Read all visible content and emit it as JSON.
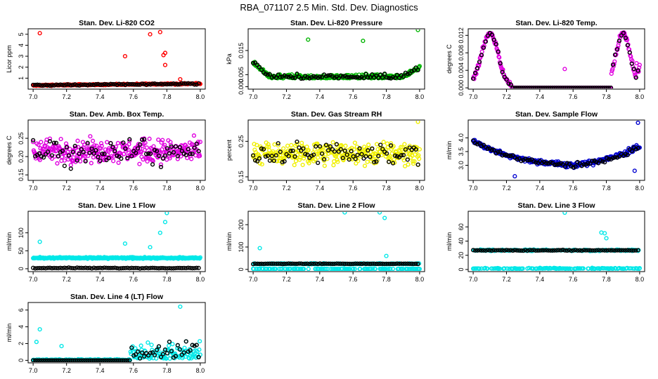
{
  "title": "RBA_071107  2.5 Min. Std. Dev. Diagnostics",
  "chart_data": [
    {
      "type": "scatter",
      "title": "Stan. Dev. Li-820 CO2",
      "ylabel": "Licor ppm",
      "xlim": [
        6.97,
        8.03
      ],
      "ylim": [
        0,
        5.5
      ],
      "xticks": [
        "7.0",
        "7.2",
        "7.4",
        "7.6",
        "7.8",
        "8.0"
      ],
      "yticks": [
        "1",
        "2",
        "3",
        "4",
        "5"
      ],
      "ytick_values": [
        1,
        2,
        3,
        4,
        5
      ],
      "colors": {
        "primary": "#ff0000",
        "secondary": "#000000"
      },
      "base": [
        0.35,
        0.5
      ],
      "spread": 0.08,
      "secondary_offset": 0,
      "outliers": [
        [
          7.04,
          5.1
        ],
        [
          7.55,
          3.0
        ],
        [
          7.7,
          5.0
        ],
        [
          7.76,
          5.2
        ],
        [
          7.78,
          3.1
        ],
        [
          7.79,
          3.3
        ],
        [
          7.79,
          2.2
        ],
        [
          7.88,
          0.9
        ]
      ]
    },
    {
      "type": "scatter",
      "title": "Stan. Dev. Li-820 Pressure",
      "ylabel": "kPa",
      "xlim": [
        6.97,
        8.03
      ],
      "ylim": [
        -0.001,
        0.024
      ],
      "xticks": [
        "7.0",
        "7.2",
        "7.4",
        "7.6",
        "7.8",
        "8.0"
      ],
      "yticks": [
        "0.000",
        "0.005",
        "0.015"
      ],
      "ytick_values": [
        0,
        0.005,
        0.015
      ],
      "colors": {
        "primary": "#00b400",
        "secondary": "#000000"
      },
      "curve": "bowl",
      "outliers": [
        [
          7.33,
          0.0195
        ],
        [
          7.66,
          0.019
        ],
        [
          7.99,
          0.0235
        ]
      ]
    },
    {
      "type": "scatter",
      "title": "Stan. Dev. Li-820 Temp.",
      "ylabel": "degrees C",
      "xlim": [
        6.97,
        8.03
      ],
      "ylim": [
        -0.0003,
        0.0135
      ],
      "xticks": [
        "7.0",
        "7.2",
        "7.4",
        "7.6",
        "7.8",
        "8.0"
      ],
      "yticks": [
        "0.000",
        "0.004",
        "0.008",
        "0.012"
      ],
      "ytick_values": [
        0,
        0.004,
        0.008,
        0.012
      ],
      "colors": {
        "primary": "#e000e0",
        "secondary": "#000000"
      },
      "curve": "twin_hump",
      "outliers": [
        [
          7.55,
          0.0043
        ]
      ]
    },
    {
      "type": "scatter",
      "title": "Stan. Dev. Amb. Box Temp.",
      "ylabel": "degrees C",
      "xlim": [
        6.97,
        8.03
      ],
      "ylim": [
        0.135,
        0.3
      ],
      "xticks": [
        "7.0",
        "7.2",
        "7.4",
        "7.6",
        "7.8",
        "8.0"
      ],
      "yticks": [
        "0.15",
        "0.20",
        "0.25"
      ],
      "ytick_values": [
        0.15,
        0.2,
        0.25
      ],
      "colors": {
        "primary": "#e000e0",
        "secondary": "#000000"
      },
      "base": [
        0.215,
        0.215
      ],
      "spread": 0.045,
      "outliers": []
    },
    {
      "type": "scatter",
      "title": "Stan. Dev. Gas Stream RH",
      "ylabel": "percent",
      "xlim": [
        6.97,
        8.03
      ],
      "ylim": [
        0.14,
        0.31
      ],
      "xticks": [
        "7.0",
        "7.2",
        "7.4",
        "7.6",
        "7.8",
        "8.0"
      ],
      "yticks": [
        "0.15",
        "0.25"
      ],
      "ytick_values": [
        0.15,
        0.25
      ],
      "colors": {
        "primary": "#f0f000",
        "secondary": "#000000"
      },
      "base": [
        0.215,
        0.215
      ],
      "spread": 0.045,
      "outliers": [
        [
          7.99,
          0.305
        ]
      ]
    },
    {
      "type": "scatter",
      "title": "Stan. Dev. Sample Flow",
      "ylabel": "ml/min",
      "xlim": [
        6.97,
        8.03
      ],
      "ylim": [
        2.45,
        4.65
      ],
      "xticks": [
        "7.0",
        "7.2",
        "7.4",
        "7.6",
        "7.8",
        "8.0"
      ],
      "yticks": [
        "3.0",
        "3.5",
        "4.0"
      ],
      "ytick_values": [
        3,
        3.5,
        4
      ],
      "colors": {
        "primary": "#0000d0",
        "secondary": "#000000"
      },
      "curve": "valley",
      "outliers": [
        [
          7.25,
          2.6
        ],
        [
          7.99,
          4.55
        ],
        [
          7.97,
          2.8
        ]
      ]
    },
    {
      "type": "scatter",
      "title": "Stan. Dev. Line 1 Flow",
      "ylabel": "ml/min",
      "xlim": [
        6.97,
        8.03
      ],
      "ylim": [
        -8,
        160
      ],
      "xticks": [
        "7.0",
        "7.2",
        "7.4",
        "7.6",
        "7.8",
        "8.0"
      ],
      "yticks": [
        "0",
        "50",
        "100"
      ],
      "ytick_values": [
        0,
        50,
        100
      ],
      "colors": {
        "primary": "#00e8e8",
        "secondary": "#000000"
      },
      "base": [
        30,
        30
      ],
      "spread": 3,
      "secondary_level": 2,
      "outliers": [
        [
          7.04,
          75
        ],
        [
          7.55,
          70
        ],
        [
          7.7,
          60
        ],
        [
          7.76,
          100
        ],
        [
          7.79,
          130
        ],
        [
          7.8,
          155
        ]
      ]
    },
    {
      "type": "scatter",
      "title": "Stan. Dev. Line 2 Flow",
      "ylabel": "ml/min",
      "xlim": [
        6.97,
        8.03
      ],
      "ylim": [
        -10,
        260
      ],
      "xticks": [
        "7.0",
        "7.2",
        "7.4",
        "7.6",
        "7.8",
        "8.0"
      ],
      "yticks": [
        "0",
        "100",
        "200"
      ],
      "ytick_values": [
        0,
        100,
        200
      ],
      "colors": {
        "primary": "#00e8e8",
        "secondary": "#000000"
      },
      "base": [
        25,
        25
      ],
      "spread": 3,
      "secondary_level": 25,
      "low_band": 2,
      "outliers": [
        [
          7.04,
          95
        ],
        [
          7.55,
          255
        ],
        [
          7.76,
          255
        ],
        [
          7.79,
          230
        ],
        [
          7.8,
          60
        ]
      ]
    },
    {
      "type": "scatter",
      "title": "Stan. Dev. Line 3 Flow",
      "ylabel": "ml/min",
      "xlim": [
        6.97,
        8.03
      ],
      "ylim": [
        -3,
        82
      ],
      "xticks": [
        "7.0",
        "7.2",
        "7.4",
        "7.6",
        "7.8",
        "8.0"
      ],
      "yticks": [
        "0",
        "20",
        "40",
        "60"
      ],
      "ytick_values": [
        0,
        20,
        40,
        60
      ],
      "colors": {
        "primary": "#00e8e8",
        "secondary": "#000000"
      },
      "base": [
        27,
        27
      ],
      "spread": 1.5,
      "secondary_level": 27,
      "low_band": 1,
      "outliers": [
        [
          7.55,
          80
        ],
        [
          7.77,
          52
        ],
        [
          7.79,
          51
        ],
        [
          7.8,
          44
        ]
      ]
    },
    {
      "type": "scatter",
      "title": "Stan. Dev. Line 4 (LT) Flow",
      "ylabel": "ml/min",
      "xlim": [
        6.97,
        8.03
      ],
      "ylim": [
        -0.3,
        6.9
      ],
      "xticks": [
        "7.0",
        "7.2",
        "7.4",
        "7.6",
        "7.8",
        "8.0"
      ],
      "yticks": [
        "0",
        "2",
        "4",
        "6"
      ],
      "ytick_values": [
        0,
        2,
        4,
        6
      ],
      "colors": {
        "primary": "#00e8e8",
        "secondary": "#000000"
      },
      "curve": "scatter_late",
      "outliers": [
        [
          7.04,
          3.7
        ],
        [
          7.02,
          2.2
        ],
        [
          7.17,
          1.7
        ],
        [
          7.88,
          6.4
        ]
      ]
    }
  ]
}
